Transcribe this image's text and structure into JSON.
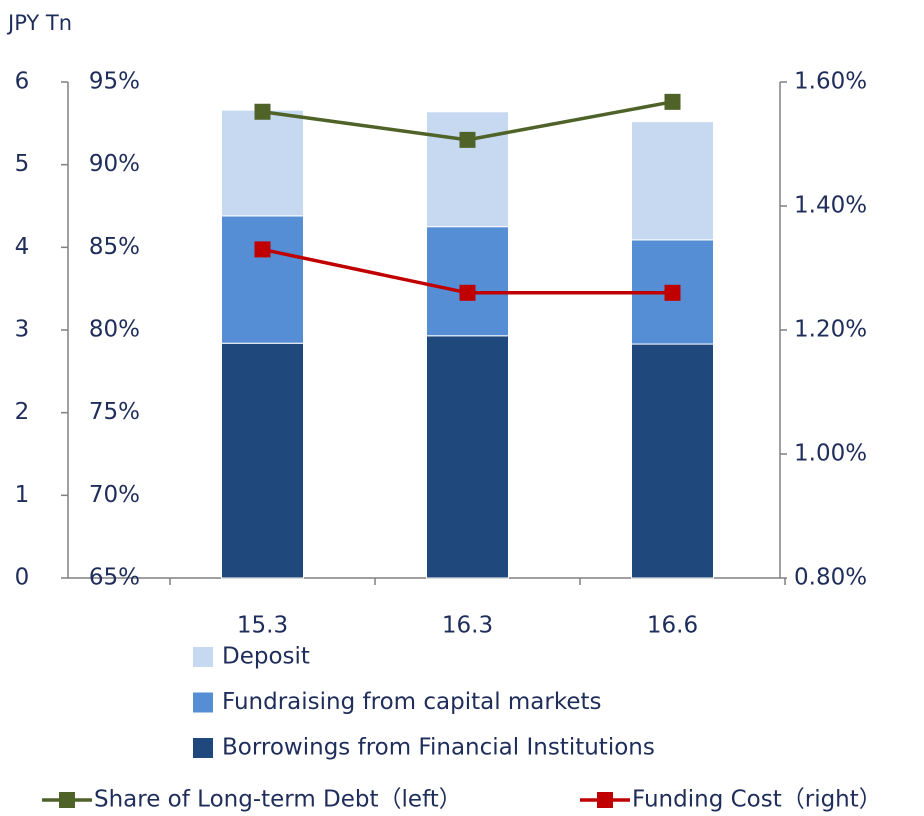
{
  "chart_data": {
    "type": "bar",
    "ylabel": "JPY Tn",
    "categories": [
      "15.3",
      "16.3",
      "16.6"
    ],
    "ylim": [
      0,
      6
    ],
    "yticks": [
      0,
      1,
      2,
      3,
      4,
      5,
      6
    ],
    "y2lim": [
      65,
      95
    ],
    "y2ticks": [
      {
        "value": 65,
        "label": "65%"
      },
      {
        "value": 70,
        "label": "70%"
      },
      {
        "value": 75,
        "label": "75%"
      },
      {
        "value": 80,
        "label": "80%"
      },
      {
        "value": 85,
        "label": "85%"
      },
      {
        "value": 90,
        "label": "90%"
      },
      {
        "value": 95,
        "label": "95%"
      }
    ],
    "y3lim": [
      0.8,
      1.6
    ],
    "y3ticks": [
      {
        "value": 0.8,
        "label": "0.80%"
      },
      {
        "value": 1.0,
        "label": "1.00%"
      },
      {
        "value": 1.2,
        "label": "1.20%"
      },
      {
        "value": 1.4,
        "label": "1.40%"
      },
      {
        "value": 1.6,
        "label": "1.60%"
      }
    ],
    "series": [
      {
        "name": "Borrowings from Financial Institutions",
        "type": "bar",
        "axis": "y",
        "color": "#1f497d",
        "values": [
          2.84,
          2.93,
          2.83
        ]
      },
      {
        "name": "Fundraising from capital markets",
        "type": "bar",
        "axis": "y",
        "color": "#558ed5",
        "values": [
          1.54,
          1.32,
          1.26
        ]
      },
      {
        "name": "Deposit",
        "type": "bar",
        "axis": "y",
        "color": "#c6d9f0",
        "values": [
          1.28,
          1.39,
          1.43
        ]
      },
      {
        "name": "Share of Long-term Debt（left）",
        "type": "line",
        "axis": "y2",
        "color": "#4f6228",
        "values": [
          93.2,
          91.5,
          93.8
        ]
      },
      {
        "name": "Funding Cost（right）",
        "type": "line",
        "axis": "y3",
        "color": "#c00000",
        "values": [
          1.33,
          1.26,
          1.26
        ]
      }
    ]
  }
}
